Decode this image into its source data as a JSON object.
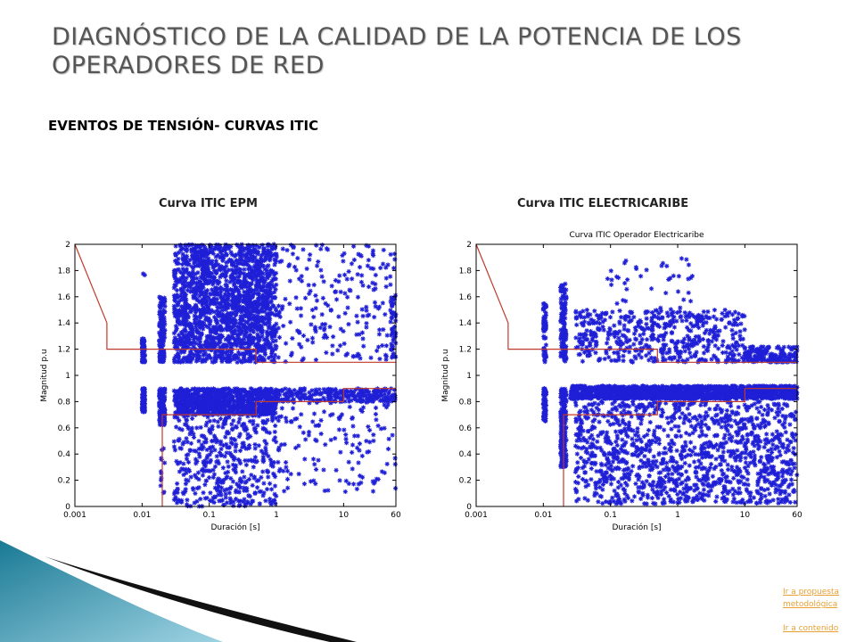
{
  "slide": {
    "title": "DIAGNÓSTICO DE LA CALIDAD DE LA POTENCIA DE LOS OPERADORES DE RED",
    "subtitle": "EVENTOS DE TENSIÓN- CURVAS ITIC"
  },
  "links": {
    "propuesta": "Ir a propuesta metodológica",
    "contenido": "Ir a contenido"
  },
  "colors": {
    "points": "#1f1fd6",
    "itic_curve": "#c0392b",
    "axis": "#000000"
  },
  "chart_data": [
    {
      "type": "scatter",
      "heading": "Curva ITIC EPM",
      "title": "",
      "xlabel": "Duración [s]",
      "ylabel": "Magnitud p.u",
      "xscale": "log",
      "xlim": [
        0.001,
        60
      ],
      "ylim": [
        0,
        2
      ],
      "xticks": [
        0.001,
        0.01,
        0.1,
        1,
        10,
        60
      ],
      "xtick_labels": [
        "0.001",
        "0.01",
        "0.1",
        "1",
        "10",
        "60"
      ],
      "yticks": [
        0,
        0.2,
        0.4,
        0.6,
        0.8,
        1,
        1.2,
        1.4,
        1.6,
        1.8,
        2
      ],
      "ytick_labels": [
        "0",
        "0.2",
        "0.4",
        "0.6",
        "0.8",
        "1",
        "1.2",
        "1.4",
        "1.6",
        "1.8",
        "2"
      ],
      "marker": "asterisk",
      "itic_upper": [
        [
          0.001,
          2
        ],
        [
          0.003,
          1.4
        ],
        [
          0.003,
          1.2
        ],
        [
          0.5,
          1.2
        ],
        [
          0.5,
          1.1
        ],
        [
          60,
          1.1
        ]
      ],
      "itic_lower": [
        [
          0.02,
          0
        ],
        [
          0.02,
          0.7
        ],
        [
          0.5,
          0.7
        ],
        [
          0.5,
          0.8
        ],
        [
          10,
          0.8
        ],
        [
          10,
          0.9
        ],
        [
          60,
          0.9
        ]
      ],
      "clusters": [
        {
          "x": [
            0.01,
            0.011
          ],
          "y": [
            1.1,
            1.28
          ],
          "n": 90
        },
        {
          "x": [
            0.01,
            0.011
          ],
          "y": [
            0.72,
            0.9
          ],
          "n": 90
        },
        {
          "x": [
            0.01,
            0.011
          ],
          "y": [
            1.75,
            1.8
          ],
          "n": 2
        },
        {
          "x": [
            0.018,
            0.022
          ],
          "y": [
            1.1,
            1.6
          ],
          "n": 150
        },
        {
          "x": [
            0.018,
            0.022
          ],
          "y": [
            0.62,
            0.9
          ],
          "n": 150
        },
        {
          "x": [
            0.018,
            0.022
          ],
          "y": [
            0.05,
            0.45
          ],
          "n": 12
        },
        {
          "x": [
            0.03,
            1.0
          ],
          "y": [
            1.1,
            2.0
          ],
          "n": 1800
        },
        {
          "x": [
            0.03,
            1.0
          ],
          "y": [
            0.7,
            0.9
          ],
          "n": 900
        },
        {
          "x": [
            0.03,
            1.0
          ],
          "y": [
            0.0,
            0.7
          ],
          "n": 450
        },
        {
          "x": [
            1.0,
            60
          ],
          "y": [
            1.1,
            2.0
          ],
          "n": 220
        },
        {
          "x": [
            1.0,
            60
          ],
          "y": [
            0.8,
            0.9
          ],
          "n": 260
        },
        {
          "x": [
            1.0,
            60
          ],
          "y": [
            0.1,
            0.8
          ],
          "n": 140
        },
        {
          "x": [
            50,
            60
          ],
          "y": [
            1.1,
            1.6
          ],
          "n": 40
        }
      ]
    },
    {
      "type": "scatter",
      "heading": "Curva ITIC ELECTRICARIBE",
      "title": "Curva ITIC Operador Electricaribe",
      "xlabel": "Duración [s]",
      "ylabel": "Magnitud p.u",
      "xscale": "log",
      "xlim": [
        0.001,
        60
      ],
      "ylim": [
        0,
        2
      ],
      "xticks": [
        0.001,
        0.01,
        0.1,
        1,
        10,
        60
      ],
      "xtick_labels": [
        "0.001",
        "0.01",
        "0.1",
        "1",
        "10",
        "60"
      ],
      "yticks": [
        0,
        0.2,
        0.4,
        0.6,
        0.8,
        1,
        1.2,
        1.4,
        1.6,
        1.8,
        2
      ],
      "ytick_labels": [
        "0",
        "0.2",
        "0.4",
        "0.6",
        "0.8",
        "1",
        "1.2",
        "1.4",
        "1.6",
        "1.8",
        "2"
      ],
      "marker": "asterisk",
      "itic_upper": [
        [
          0.001,
          2
        ],
        [
          0.003,
          1.4
        ],
        [
          0.003,
          1.2
        ],
        [
          0.5,
          1.2
        ],
        [
          0.5,
          1.1
        ],
        [
          60,
          1.1
        ]
      ],
      "itic_lower": [
        [
          0.02,
          0
        ],
        [
          0.02,
          0.7
        ],
        [
          0.5,
          0.7
        ],
        [
          0.5,
          0.8
        ],
        [
          10,
          0.8
        ],
        [
          10,
          0.9
        ],
        [
          60,
          0.9
        ]
      ],
      "clusters": [
        {
          "x": [
            0.01,
            0.011
          ],
          "y": [
            1.1,
            1.55
          ],
          "n": 70
        },
        {
          "x": [
            0.01,
            0.011
          ],
          "y": [
            0.65,
            0.9
          ],
          "n": 70
        },
        {
          "x": [
            0.018,
            0.022
          ],
          "y": [
            1.1,
            1.7
          ],
          "n": 120
        },
        {
          "x": [
            0.018,
            0.022
          ],
          "y": [
            0.3,
            0.9
          ],
          "n": 180
        },
        {
          "x": [
            0.03,
            10
          ],
          "y": [
            1.1,
            1.5
          ],
          "n": 520
        },
        {
          "x": [
            0.08,
            2.0
          ],
          "y": [
            1.5,
            1.9
          ],
          "n": 40
        },
        {
          "x": [
            10,
            60
          ],
          "y": [
            1.1,
            1.22
          ],
          "n": 160
        },
        {
          "x": [
            0.025,
            60
          ],
          "y": [
            0.82,
            0.92
          ],
          "n": 1500
        },
        {
          "x": [
            0.03,
            60
          ],
          "y": [
            0.02,
            0.8
          ],
          "n": 1300
        }
      ]
    }
  ]
}
